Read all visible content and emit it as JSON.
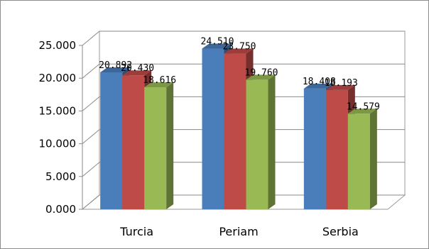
{
  "chart_data": {
    "type": "bar",
    "categories": [
      "Turcia",
      "Periam",
      "Serbia"
    ],
    "series": [
      {
        "values": [
          20.892,
          24.51,
          18.408
        ],
        "labels": [
          "20.892",
          "24.510",
          "18.408"
        ],
        "color": "#4a7ebb"
      },
      {
        "values": [
          20.43,
          23.75,
          18.193
        ],
        "labels": [
          "20.430",
          "23.750",
          "18.193"
        ],
        "color": "#be4b48"
      },
      {
        "values": [
          18.616,
          19.76,
          14.579
        ],
        "labels": [
          "18.616",
          "19.760",
          "14.579"
        ],
        "color": "#98b954"
      }
    ],
    "ylim": [
      0,
      25
    ],
    "yticks": [
      {
        "value": 0,
        "label": "0.000"
      },
      {
        "value": 5,
        "label": "5.000"
      },
      {
        "value": 10,
        "label": "10.000"
      },
      {
        "value": 15,
        "label": "15.000"
      },
      {
        "value": 20,
        "label": "20.000"
      },
      {
        "value": 25,
        "label": "25.000"
      }
    ],
    "style": "3d-clustered-column",
    "grid": true,
    "legend": "none"
  }
}
